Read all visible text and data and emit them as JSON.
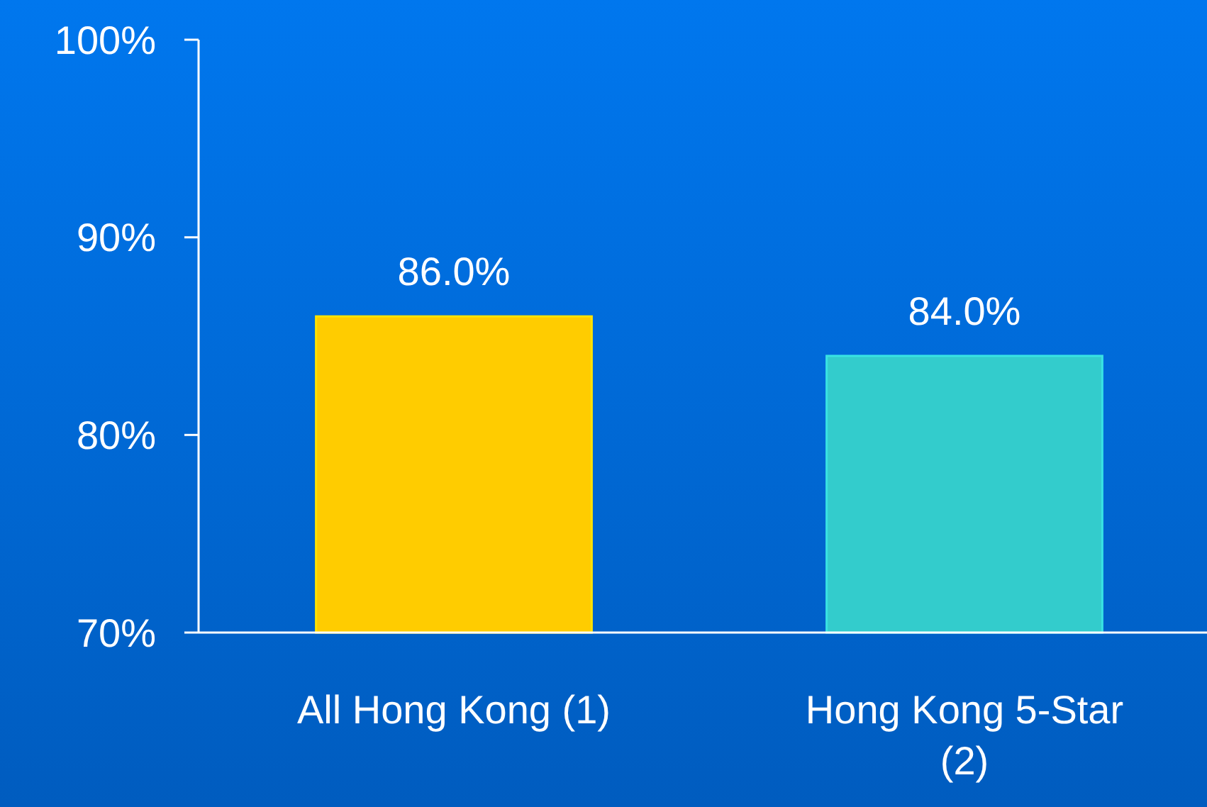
{
  "chart_data": {
    "type": "bar",
    "categories": [
      "All Hong Kong (1)",
      "Hong Kong 5-Star (2)"
    ],
    "values": [
      86.0,
      84.0
    ],
    "colors": [
      "#ffcc00",
      "#33cccc"
    ],
    "value_labels": [
      "86.0%",
      "84.0%"
    ],
    "ylim": [
      70,
      100
    ],
    "yticks": [
      {
        "value": 70,
        "label": "70%"
      },
      {
        "value": 80,
        "label": "80%"
      },
      {
        "value": 90,
        "label": "90%"
      },
      {
        "value": 100,
        "label": "100%"
      }
    ],
    "grid": false
  }
}
